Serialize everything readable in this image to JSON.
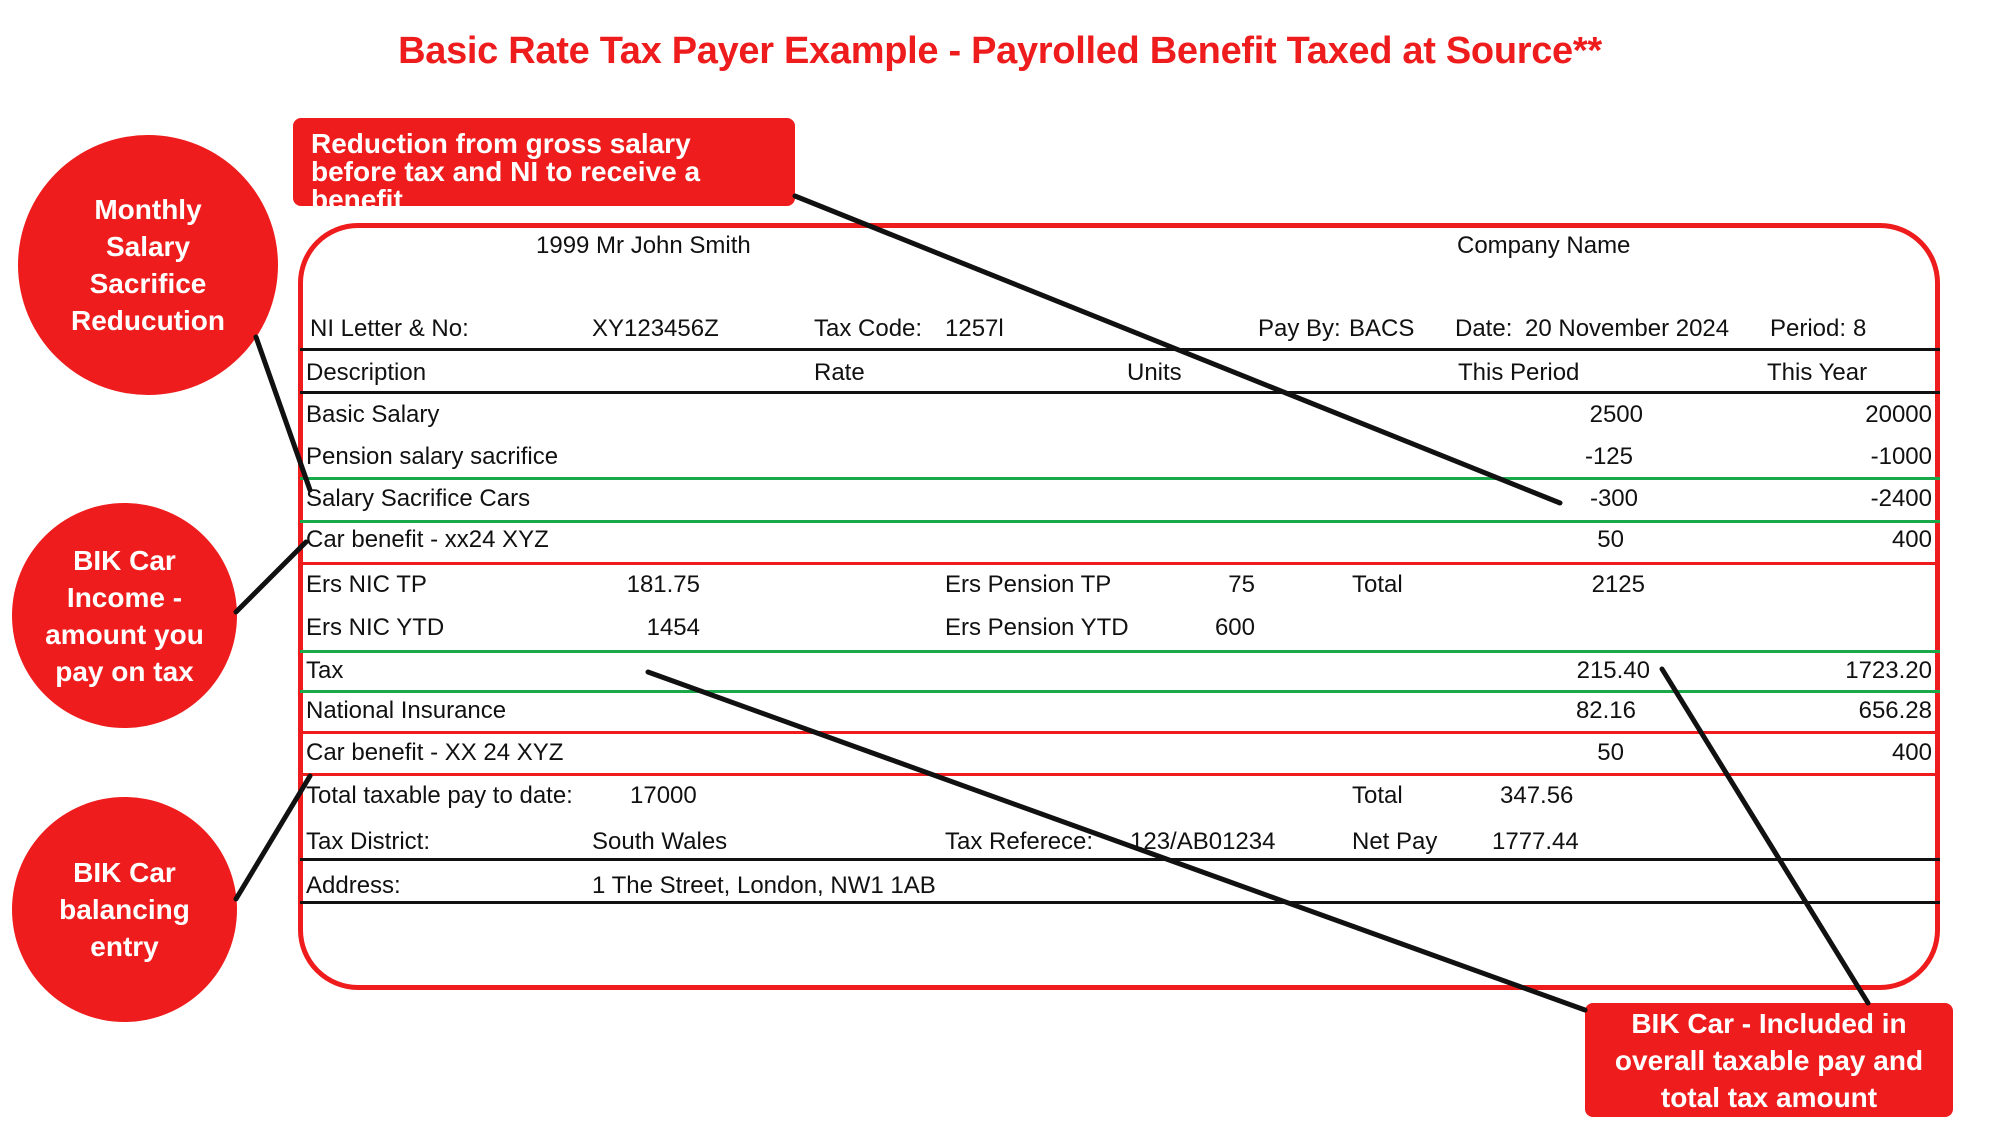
{
  "title": "Basic Rate Tax Payer Example - Payrolled Benefit Taxed at Source**",
  "circles": {
    "monthly": "Monthly Salary Sacrifice Reducution",
    "bik_income": "BIK Car Income - amount you pay on tax",
    "bik_balancing": "BIK Car balancing entry"
  },
  "callouts": {
    "reduction": "Reduction from gross salary before tax and NI to receive a benefit",
    "bik_included": "BIK Car - Included in overall taxable pay and total tax amount"
  },
  "payslip": {
    "employee": "1999 Mr John Smith",
    "company": "Company Name",
    "ni_label": "NI Letter & No:",
    "ni_value": "XY123456Z",
    "tax_code_label": "Tax Code:",
    "tax_code_value": "1257l",
    "pay_by_label": "Pay By:",
    "pay_by_value": "BACS",
    "date_label": "Date:",
    "date_value": "20 November 2024",
    "period_label": "Period:",
    "period_value": "8",
    "headers": {
      "description": "Description",
      "rate": "Rate",
      "units": "Units",
      "this_period": "This Period",
      "this_year": "This Year"
    },
    "rows": [
      {
        "desc": "Basic Salary",
        "period": "2500",
        "year": "20000"
      },
      {
        "desc": "Pension salary sacrifice",
        "period": "-125",
        "year": "-1000"
      },
      {
        "desc": "Salary Sacrifice Cars",
        "period": "-300",
        "year": "-2400"
      },
      {
        "desc": "Car benefit - xx24 XYZ",
        "period": "50",
        "year": "400"
      }
    ],
    "employer": {
      "ers_nic_tp_label": "Ers NIC TP",
      "ers_nic_tp_value": "181.75",
      "ers_pension_tp_label": "Ers Pension TP",
      "ers_pension_tp_value": "75",
      "total_label": "Total",
      "total_value": "2125",
      "ers_nic_ytd_label": "Ers NIC YTD",
      "ers_nic_ytd_value": "1454",
      "ers_pension_ytd_label": "Ers Pension YTD",
      "ers_pension_ytd_value": "600"
    },
    "deductions": [
      {
        "desc": "Tax",
        "period": "215.40",
        "year": "1723.20"
      },
      {
        "desc": "National Insurance",
        "period": "82.16",
        "year": "656.28"
      },
      {
        "desc": "Car benefit - XX 24 XYZ",
        "period": "50",
        "year": "400"
      }
    ],
    "footer": {
      "taxable_label": "Total taxable pay to date:",
      "taxable_value": "17000",
      "total_label": "Total",
      "total_value": "347.56",
      "district_label": "Tax District:",
      "district_value": "South Wales",
      "ref_label": "Tax Referece:",
      "ref_value": "123/AB01234",
      "net_label": "Net Pay",
      "net_value": "1777.44",
      "address_label": "Address:",
      "address_value": "1 The Street, London, NW1 1AB"
    }
  },
  "colors": {
    "accent_red": "#ee1c1c",
    "green_highlight": "#1aa94a",
    "rule_black": "#111111"
  }
}
